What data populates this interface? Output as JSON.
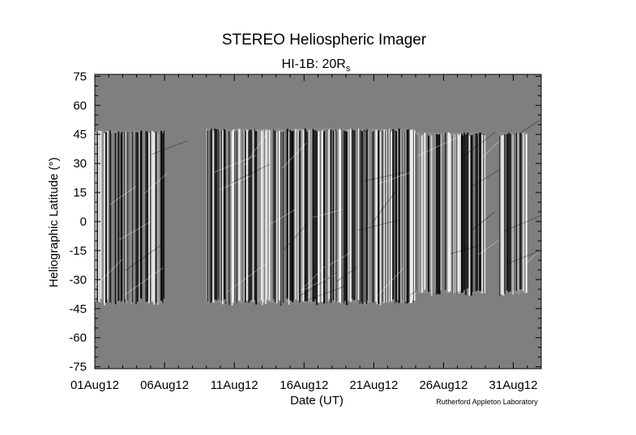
{
  "chart_data": {
    "type": "heatmap",
    "title": "STEREO Heliospheric Imager",
    "subtitle": "HI-1B: 20R",
    "subtitle_subscript": "s",
    "xlabel": "Date (UT)",
    "ylabel": "Heliographic Latitude (°)",
    "credit": "Rutherford Appleton Laboratory",
    "x_start": "2012-08-01",
    "x_end": "2012-09-02",
    "xlim": [
      "2012-08-01",
      "2012-09-02"
    ],
    "x_ticks": [
      "01Aug12",
      "06Aug12",
      "11Aug12",
      "16Aug12",
      "21Aug12",
      "26Aug12",
      "31Aug12"
    ],
    "x_tick_dates": [
      "2012-08-01",
      "2012-08-06",
      "2012-08-11",
      "2012-08-16",
      "2012-08-21",
      "2012-08-26",
      "2012-08-31"
    ],
    "ylim": [
      -76,
      76
    ],
    "y_ticks": [
      75,
      60,
      45,
      30,
      15,
      0,
      -15,
      -30,
      -45,
      -60,
      -75
    ],
    "grid": false,
    "colormap": "grayscale",
    "background_color": "#7f7f7f",
    "data_blocks": [
      {
        "start": "2012-08-01",
        "end": "2012-08-06",
        "lat_max": 47,
        "lat_min": -42
      },
      {
        "start": "2012-08-09",
        "end": "2012-08-24",
        "lat_max": 48,
        "lat_min": -42
      },
      {
        "start": "2012-08-24",
        "end": "2012-08-29",
        "lat_max": 46,
        "lat_min": -37
      },
      {
        "start": "2012-08-30",
        "end": "2012-09-01",
        "lat_max": 46,
        "lat_min": -37
      }
    ]
  }
}
